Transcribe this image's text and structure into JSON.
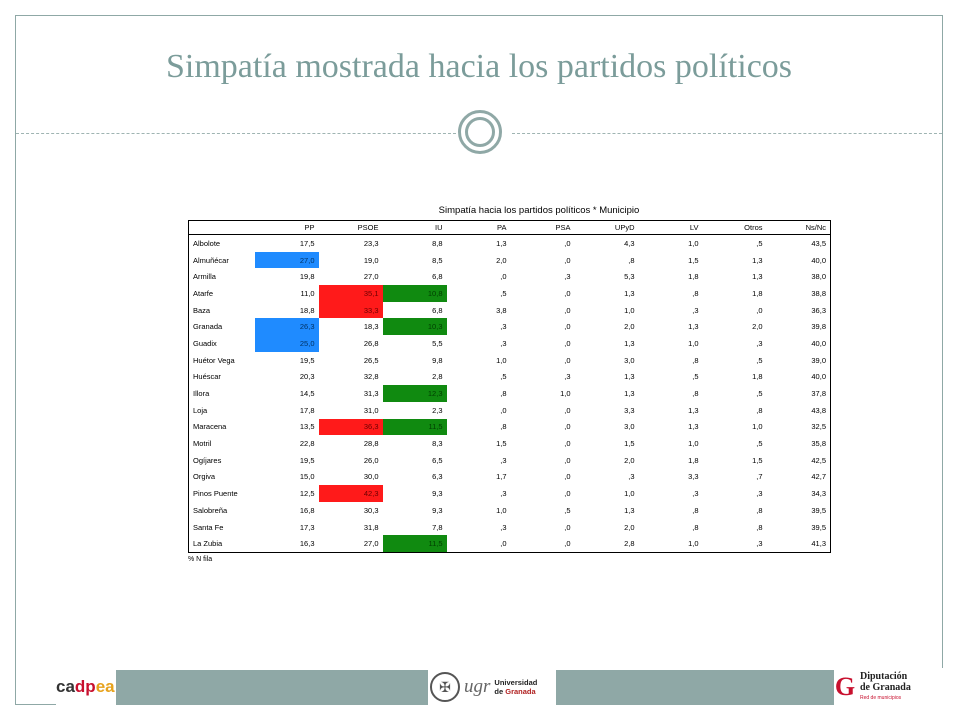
{
  "slide": {
    "title": "Simpatía mostrada hacia los partidos políticos"
  },
  "table": {
    "title": "Simpatía hacia los partidos políticos * Municipio",
    "columns": [
      "PP",
      "PSOE",
      "IU",
      "PA",
      "PSA",
      "UPyD",
      "LV",
      "Otros",
      "Ns/Nc"
    ],
    "rows": [
      {
        "municipio": "Albolote",
        "values": [
          "17,5",
          "23,3",
          "8,8",
          "1,3",
          ",0",
          "4,3",
          "1,0",
          ",5",
          "43,5"
        ],
        "highlight": [
          "",
          "",
          "",
          "",
          "",
          "",
          "",
          "",
          ""
        ]
      },
      {
        "municipio": "Almuñécar",
        "values": [
          "27,0",
          "19,0",
          "8,5",
          "2,0",
          ",0",
          ",8",
          "1,5",
          "1,3",
          "40,0"
        ],
        "highlight": [
          "blue",
          "",
          "",
          "",
          "",
          "",
          "",
          "",
          ""
        ]
      },
      {
        "municipio": "Armilla",
        "values": [
          "19,8",
          "27,0",
          "6,8",
          ",0",
          ",3",
          "5,3",
          "1,8",
          "1,3",
          "38,0"
        ],
        "highlight": [
          "",
          "",
          "",
          "",
          "",
          "",
          "",
          "",
          ""
        ]
      },
      {
        "municipio": "Atarfe",
        "values": [
          "11,0",
          "35,1",
          "10,8",
          ",5",
          ",0",
          "1,3",
          ",8",
          "1,8",
          "38,8"
        ],
        "highlight": [
          "",
          "red",
          "green",
          "",
          "",
          "",
          "",
          "",
          ""
        ]
      },
      {
        "municipio": "Baza",
        "values": [
          "18,8",
          "33,3",
          "6,8",
          "3,8",
          ",0",
          "1,0",
          ",3",
          ",0",
          "36,3"
        ],
        "highlight": [
          "",
          "red",
          "",
          "",
          "",
          "",
          "",
          "",
          ""
        ]
      },
      {
        "municipio": "Granada",
        "values": [
          "26,3",
          "18,3",
          "10,3",
          ",3",
          ",0",
          "2,0",
          "1,3",
          "2,0",
          "39,8"
        ],
        "highlight": [
          "blue",
          "",
          "green",
          "",
          "",
          "",
          "",
          "",
          ""
        ]
      },
      {
        "municipio": "Guadix",
        "values": [
          "25,0",
          "26,8",
          "5,5",
          ",3",
          ",0",
          "1,3",
          "1,0",
          ",3",
          "40,0"
        ],
        "highlight": [
          "blue",
          "",
          "",
          "",
          "",
          "",
          "",
          "",
          ""
        ]
      },
      {
        "municipio": "Huétor Vega",
        "values": [
          "19,5",
          "26,5",
          "9,8",
          "1,0",
          ",0",
          "3,0",
          ",8",
          ",5",
          "39,0"
        ],
        "highlight": [
          "",
          "",
          "",
          "",
          "",
          "",
          "",
          "",
          ""
        ]
      },
      {
        "municipio": "Huéscar",
        "values": [
          "20,3",
          "32,8",
          "2,8",
          ",5",
          ",3",
          "1,3",
          ",5",
          "1,8",
          "40,0"
        ],
        "highlight": [
          "",
          "",
          "",
          "",
          "",
          "",
          "",
          "",
          ""
        ]
      },
      {
        "municipio": "Illora",
        "values": [
          "14,5",
          "31,3",
          "12,3",
          ",8",
          "1,0",
          "1,3",
          ",8",
          ",5",
          "37,8"
        ],
        "highlight": [
          "",
          "",
          "green",
          "",
          "",
          "",
          "",
          "",
          ""
        ]
      },
      {
        "municipio": "Loja",
        "values": [
          "17,8",
          "31,0",
          "2,3",
          ",0",
          ",0",
          "3,3",
          "1,3",
          ",8",
          "43,8"
        ],
        "highlight": [
          "",
          "",
          "",
          "",
          "",
          "",
          "",
          "",
          ""
        ]
      },
      {
        "municipio": "Maracena",
        "values": [
          "13,5",
          "36,3",
          "11,5",
          ",8",
          ",0",
          "3,0",
          "1,3",
          "1,0",
          "32,5"
        ],
        "highlight": [
          "",
          "red",
          "green",
          "",
          "",
          "",
          "",
          "",
          ""
        ]
      },
      {
        "municipio": "Motril",
        "values": [
          "22,8",
          "28,8",
          "8,3",
          "1,5",
          ",0",
          "1,5",
          "1,0",
          ",5",
          "35,8"
        ],
        "highlight": [
          "",
          "",
          "",
          "",
          "",
          "",
          "",
          "",
          ""
        ]
      },
      {
        "municipio": "Ogíjares",
        "values": [
          "19,5",
          "26,0",
          "6,5",
          ",3",
          ",0",
          "2,0",
          "1,8",
          "1,5",
          "42,5"
        ],
        "highlight": [
          "",
          "",
          "",
          "",
          "",
          "",
          "",
          "",
          ""
        ]
      },
      {
        "municipio": "Orgiva",
        "values": [
          "15,0",
          "30,0",
          "6,3",
          "1,7",
          ",0",
          ",3",
          "3,3",
          ",7",
          "42,7"
        ],
        "highlight": [
          "",
          "",
          "",
          "",
          "",
          "",
          "",
          "",
          ""
        ]
      },
      {
        "municipio": "Pinos Puente",
        "values": [
          "12,5",
          "42,3",
          "9,3",
          ",3",
          ",0",
          "1,0",
          ",3",
          ",3",
          "34,3"
        ],
        "highlight": [
          "",
          "red",
          "",
          "",
          "",
          "",
          "",
          "",
          ""
        ]
      },
      {
        "municipio": "Salobreña",
        "values": [
          "16,8",
          "30,3",
          "9,3",
          "1,0",
          ",5",
          "1,3",
          ",8",
          ",8",
          "39,5"
        ],
        "highlight": [
          "",
          "",
          "",
          "",
          "",
          "",
          "",
          "",
          ""
        ]
      },
      {
        "municipio": "Santa Fe",
        "values": [
          "17,3",
          "31,8",
          "7,8",
          ",3",
          ",0",
          "2,0",
          ",8",
          ",8",
          "39,5"
        ],
        "highlight": [
          "",
          "",
          "",
          "",
          "",
          "",
          "",
          "",
          ""
        ]
      },
      {
        "municipio": "La Zubia",
        "values": [
          "16,3",
          "27,0",
          "11,5",
          ",0",
          ",0",
          "2,8",
          "1,0",
          ",3",
          "41,3"
        ],
        "highlight": [
          "",
          "",
          "green",
          "",
          "",
          "",
          "",
          "",
          ""
        ]
      }
    ],
    "footnote": "% N fila"
  },
  "footer": {
    "logo_cadpea": {
      "part1": "ca",
      "part2": "dp",
      "part3": "ea"
    },
    "logo_ugr": {
      "mark": "ugr",
      "line1": "Universidad",
      "line2_pre": "de ",
      "line2_gr": "Granada"
    },
    "logo_diputacion": {
      "line1": "Diputación",
      "line2": "de Granada",
      "sub": "Red de municipios"
    }
  },
  "colors": {
    "accent": "#8fa8a6",
    "title": "#7b9c9a",
    "highlight_blue": "#1f8bff",
    "highlight_red": "#ff1a1a",
    "highlight_green": "#108a10"
  }
}
